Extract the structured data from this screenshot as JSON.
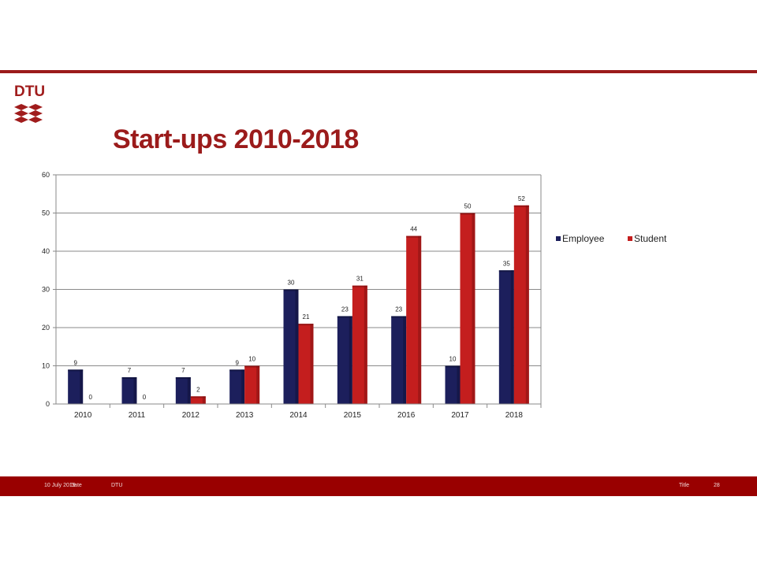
{
  "header": {
    "logo_text": "DTU",
    "title": "Start-ups 2010-2018"
  },
  "colors": {
    "brand": "#9b1b1b",
    "employee": "#1c1f5c",
    "student": "#c41e1e",
    "footer_bg": "#990000"
  },
  "legend": {
    "employee": "Employee",
    "student": "Student"
  },
  "chart_data": {
    "type": "bar",
    "title": "",
    "xlabel": "",
    "ylabel": "",
    "categories": [
      "2010",
      "2011",
      "2012",
      "2013",
      "2014",
      "2015",
      "2016",
      "2017",
      "2018"
    ],
    "series": [
      {
        "name": "Employee",
        "values": [
          9,
          7,
          7,
          9,
          30,
          23,
          23,
          10,
          35
        ]
      },
      {
        "name": "Student",
        "values": [
          0,
          0,
          2,
          10,
          21,
          31,
          44,
          50,
          52
        ]
      }
    ],
    "ylim": [
      0,
      60
    ],
    "yticks": [
      "0",
      "10",
      "20",
      "30",
      "40",
      "50",
      "60"
    ],
    "grid": true,
    "legend_position": "right"
  },
  "footer": {
    "date": "10 July 2019",
    "date_overlap": "Date",
    "org": "DTU",
    "title": "Title",
    "page": "28"
  }
}
